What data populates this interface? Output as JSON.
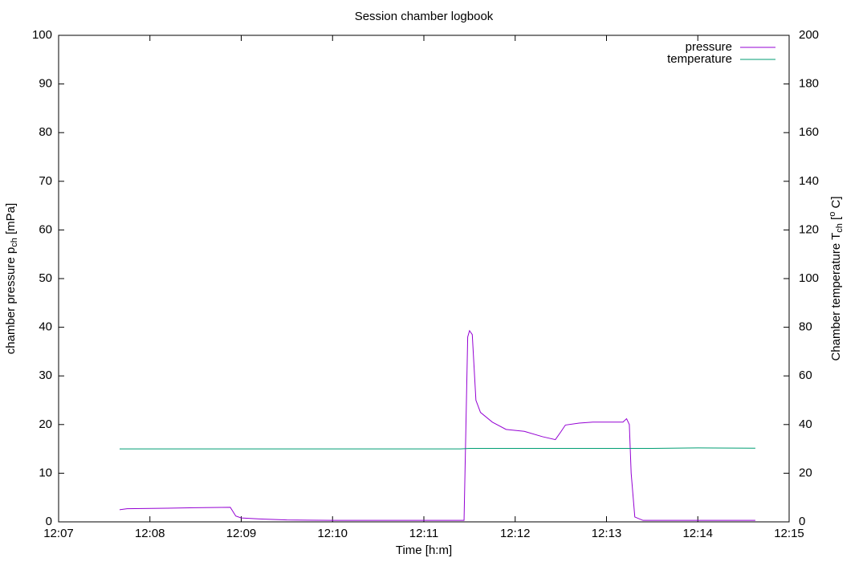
{
  "chart_data": {
    "type": "line",
    "title": "Session chamber logbook",
    "xlabel": "Time [h:m]",
    "ylabel": [
      "chamber pressure p",
      "ch",
      " [mPa]"
    ],
    "y2label": [
      "Chamber temperature T",
      "ch",
      " [",
      "o",
      " C]"
    ],
    "xlim": [
      727,
      735
    ],
    "xticks": [
      {
        "value": 727,
        "label": "12:07"
      },
      {
        "value": 728,
        "label": "12:08"
      },
      {
        "value": 729,
        "label": "12:09"
      },
      {
        "value": 730,
        "label": "12:10"
      },
      {
        "value": 731,
        "label": "12:11"
      },
      {
        "value": 732,
        "label": "12:12"
      },
      {
        "value": 733,
        "label": "12:13"
      },
      {
        "value": 734,
        "label": "12:14"
      },
      {
        "value": 735,
        "label": "12:15"
      }
    ],
    "ylim": [
      0,
      100
    ],
    "yticks": [
      0,
      10,
      20,
      30,
      40,
      50,
      60,
      70,
      80,
      90,
      100
    ],
    "y2lim": [
      0,
      200
    ],
    "y2ticks": [
      0,
      20,
      40,
      60,
      80,
      100,
      120,
      140,
      160,
      180,
      200
    ],
    "legend": "top-right",
    "series": [
      {
        "name": "pressure",
        "color": "#9400d3",
        "x": [
          727.668,
          727.75,
          728.19,
          728.5,
          728.88,
          728.94,
          729.0,
          729.2,
          729.5,
          730.0,
          731.44,
          731.48,
          731.5,
          731.53,
          731.57,
          731.62,
          731.75,
          731.9,
          732.1,
          732.3,
          732.44,
          732.5,
          732.55,
          732.7,
          732.85,
          733.1,
          733.18,
          733.22,
          733.25,
          733.27,
          733.31,
          733.4,
          734.63
        ],
        "values": [
          2.5,
          2.7,
          2.8,
          2.9,
          3.0,
          1.2,
          0.8,
          0.6,
          0.4,
          0.3,
          0.3,
          38,
          39.3,
          38.5,
          25,
          22.5,
          20.5,
          19,
          18.6,
          17.5,
          16.9,
          18.5,
          19.9,
          20.3,
          20.5,
          20.5,
          20.5,
          21.2,
          20,
          10,
          1,
          0.3,
          0.3
        ]
      },
      {
        "name": "temperature",
        "color": "#009e73",
        "axis": "y2",
        "x": [
          727.668,
          728.5,
          729.5,
          730.5,
          731.4,
          731.5,
          732.5,
          733.5,
          734.0,
          734.63
        ],
        "values": [
          30,
          30,
          30,
          30,
          30,
          30.2,
          30.2,
          30.2,
          30.4,
          30.3
        ]
      }
    ]
  }
}
